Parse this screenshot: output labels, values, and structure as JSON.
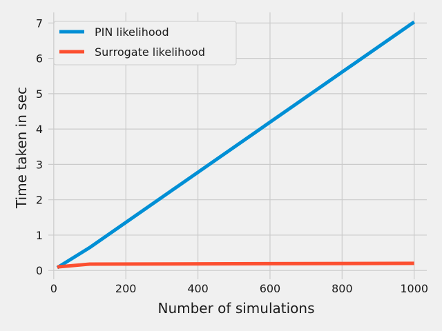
{
  "chart_data": {
    "type": "line",
    "title": "",
    "xlabel": "Number of simulations",
    "ylabel": "Time taken in sec",
    "xlim": [
      -15,
      1035
    ],
    "ylim": [
      -0.25,
      7.3
    ],
    "xticks": [
      0,
      200,
      400,
      600,
      800,
      1000
    ],
    "yticks": [
      0,
      1,
      2,
      3,
      4,
      5,
      6,
      7
    ],
    "grid": true,
    "legend_position": "top-left",
    "series": [
      {
        "name": "PIN likelihood",
        "color": "#008fd5",
        "x": [
          10,
          100,
          1000
        ],
        "y": [
          0.08,
          0.65,
          7.03
        ]
      },
      {
        "name": "Surrogate likelihood",
        "color": "#fc4f30",
        "x": [
          10,
          100,
          1000
        ],
        "y": [
          0.1,
          0.18,
          0.2
        ]
      }
    ]
  }
}
